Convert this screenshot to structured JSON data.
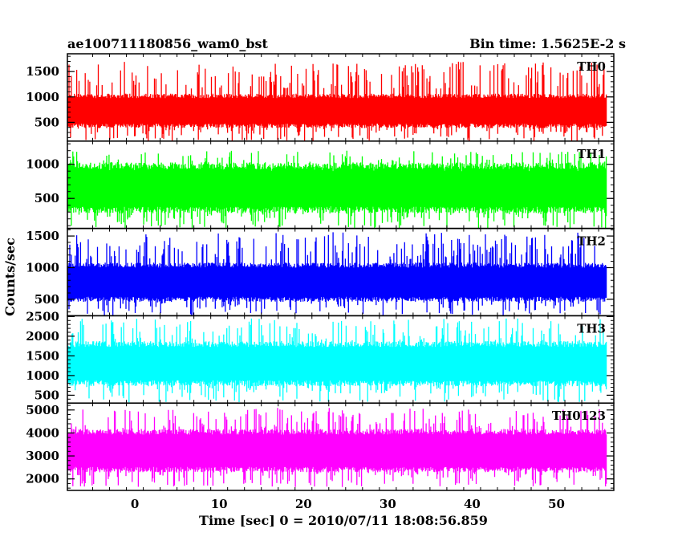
{
  "header": {
    "title": "ae100711180856_wam0_bst",
    "bin_time": "Bin time: 1.5625E-2 s"
  },
  "chart_data": {
    "type": "line",
    "xlabel": "Time [sec] 0 = 2010/07/11 18:08:56.859",
    "ylabel": "Counts/sec",
    "xlim": [
      -8.0,
      56.8
    ],
    "x_ticks": [
      0,
      10,
      20,
      30,
      40,
      50
    ],
    "x_start": -7.9,
    "x_end": 56.0,
    "bin_time": 0.015625,
    "panels": [
      {
        "name": "TH0",
        "color": "#ff0000",
        "ylim": [
          130,
          1850
        ],
        "yticks": [
          500,
          1000,
          1500
        ],
        "range": [
          130,
          1700
        ],
        "base": [
          430,
          1020
        ]
      },
      {
        "name": "TH1",
        "color": "#00ff00",
        "ylim": [
          60,
          1340
        ],
        "yticks": [
          500,
          1000
        ],
        "range": [
          60,
          1200
        ],
        "base": [
          330,
          980
        ]
      },
      {
        "name": "TH2",
        "color": "#0000ff",
        "ylim": [
          240,
          1620
        ],
        "yticks": [
          500,
          1000,
          1500
        ],
        "range": [
          240,
          1560
        ],
        "base": [
          500,
          1040
        ]
      },
      {
        "name": "TH3",
        "color": "#00ffff",
        "ylim": [
          300,
          2520
        ],
        "yticks": [
          500,
          1000,
          1500,
          2000,
          2500
        ],
        "range": [
          320,
          2450
        ],
        "base": [
          800,
          1800
        ]
      },
      {
        "name": "TH0123",
        "color": "#ff00ff",
        "ylim": [
          1500,
          5300
        ],
        "yticks": [
          2000,
          3000,
          4000,
          5000
        ],
        "range": [
          1650,
          5100
        ],
        "base": [
          2400,
          4050
        ]
      }
    ]
  }
}
